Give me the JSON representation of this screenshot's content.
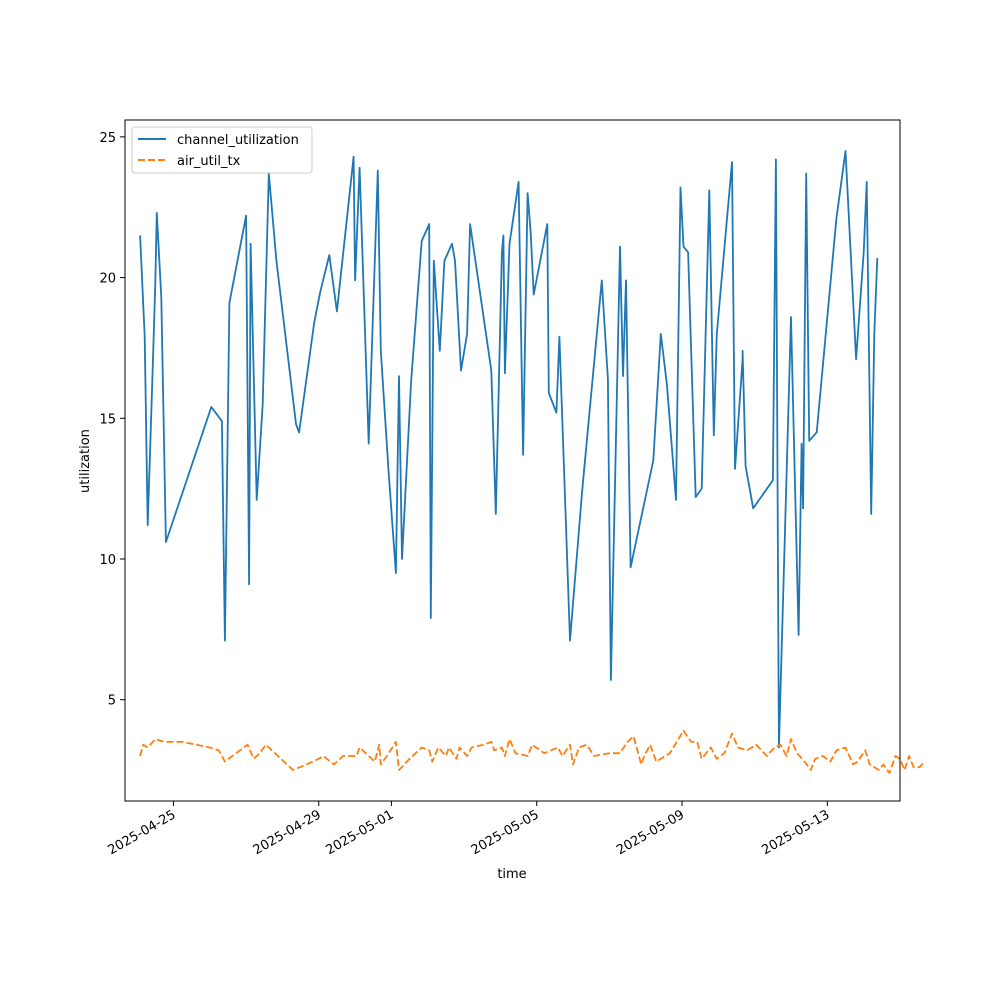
{
  "chart_data": {
    "type": "line",
    "xlabel": "time",
    "ylabel": "utilization",
    "xlim": [
      "2025-04-23T16:00",
      "2025-05-15T00:00"
    ],
    "ylim": [
      1.4,
      25.6
    ],
    "x_ticks": [
      "2025-04-25",
      "2025-04-29",
      "2025-05-01",
      "2025-05-05",
      "2025-05-09",
      "2025-05-13"
    ],
    "y_ticks": [
      5,
      10,
      15,
      20,
      25
    ],
    "grid": false,
    "legend_position": "top-left",
    "series": [
      {
        "name": "channel_utilization",
        "color": "#1f77b4",
        "dash": "solid",
        "points": [
          [
            "2025-04-24T02:00",
            21.5
          ],
          [
            "2025-04-24T05:00",
            17.9
          ],
          [
            "2025-04-24T07:00",
            11.2
          ],
          [
            "2025-04-24T10:00",
            16.2
          ],
          [
            "2025-04-24T12:00",
            19.8
          ],
          [
            "2025-04-24T13:00",
            22.3
          ],
          [
            "2025-04-24T16:00",
            19.3
          ],
          [
            "2025-04-24T19:00",
            10.6
          ],
          [
            "2025-04-26T01:00",
            15.4
          ],
          [
            "2025-04-26T08:00",
            14.9
          ],
          [
            "2025-04-26T10:00",
            7.1
          ],
          [
            "2025-04-26T13:00",
            19.1
          ],
          [
            "2025-04-27T00:00",
            22.2
          ],
          [
            "2025-04-27T02:00",
            9.1
          ],
          [
            "2025-04-27T03:00",
            21.2
          ],
          [
            "2025-04-27T07:00",
            12.1
          ],
          [
            "2025-04-27T11:00",
            15.5
          ],
          [
            "2025-04-27T15:00",
            23.7
          ],
          [
            "2025-04-27T20:00",
            20.6
          ],
          [
            "2025-04-28T09:00",
            14.8
          ],
          [
            "2025-04-28T11:00",
            14.5
          ],
          [
            "2025-04-28T21:00",
            18.4
          ],
          [
            "2025-04-29T23:00",
            24.3
          ],
          [
            "2025-04-29T01:00",
            19.5
          ],
          [
            "2025-04-29T07:00",
            20.8
          ],
          [
            "2025-04-29T12:00",
            18.8
          ],
          [
            "2025-04-30T00:00",
            19.9
          ],
          [
            "2025-04-30T03:00",
            23.9
          ],
          [
            "2025-04-30T09:00",
            14.1
          ],
          [
            "2025-04-30T15:00",
            23.8
          ],
          [
            "2025-04-30T17:00",
            17.4
          ],
          [
            "2025-04-30T22:00",
            13.2
          ],
          [
            "2025-05-01T03:00",
            9.5
          ],
          [
            "2025-05-01T05:00",
            16.5
          ],
          [
            "2025-05-01T07:00",
            10.0
          ],
          [
            "2025-05-01T13:00",
            16.3
          ],
          [
            "2025-05-01T20:00",
            21.3
          ],
          [
            "2025-05-02T01:00",
            21.9
          ],
          [
            "2025-05-02T02:00",
            7.9
          ],
          [
            "2025-05-02T04:00",
            20.6
          ],
          [
            "2025-05-02T08:00",
            17.4
          ],
          [
            "2025-05-02T11:00",
            20.6
          ],
          [
            "2025-05-02T16:00",
            21.2
          ],
          [
            "2025-05-02T18:00",
            20.6
          ],
          [
            "2025-05-02T22:00",
            16.7
          ],
          [
            "2025-05-03T02:00",
            18.0
          ],
          [
            "2025-05-03T04:00",
            21.9
          ],
          [
            "2025-05-03T18:00",
            16.7
          ],
          [
            "2025-05-03T21:00",
            11.6
          ],
          [
            "2025-05-04T01:00",
            20.9
          ],
          [
            "2025-05-04T03:00",
            16.6
          ],
          [
            "2025-05-04T06:00",
            21.2
          ],
          [
            "2025-05-04T12:00",
            23.4
          ],
          [
            "2025-05-04T22:00",
            19.4
          ],
          [
            "2025-05-04T02:00",
            21.5
          ],
          [
            "2025-05-04T15:00",
            13.7
          ],
          [
            "2025-05-04T18:00",
            23.0
          ],
          [
            "2025-05-04T20:00",
            21.6
          ],
          [
            "2025-05-05T07:00",
            21.9
          ],
          [
            "2025-05-05T08:00",
            15.9
          ],
          [
            "2025-05-05T13:00",
            15.2
          ],
          [
            "2025-05-05T15:00",
            17.9
          ],
          [
            "2025-05-05T22:00",
            7.1
          ],
          [
            "2025-05-06T06:00",
            12.4
          ],
          [
            "2025-05-06T19:00",
            19.9
          ],
          [
            "2025-05-06T23:00",
            16.4
          ],
          [
            "2025-05-07T01:00",
            5.7
          ],
          [
            "2025-05-07T07:00",
            21.1
          ],
          [
            "2025-05-07T09:00",
            16.5
          ],
          [
            "2025-05-07T11:00",
            19.9
          ],
          [
            "2025-05-07T14:00",
            9.7
          ],
          [
            "2025-05-08T05:00",
            13.5
          ],
          [
            "2025-05-08T10:00",
            18.0
          ],
          [
            "2025-05-08T14:00",
            16.2
          ],
          [
            "2025-05-08T20:00",
            12.1
          ],
          [
            "2025-05-08T23:00",
            23.2
          ],
          [
            "2025-05-09T01:00",
            21.1
          ],
          [
            "2025-05-09T04:00",
            20.9
          ],
          [
            "2025-05-09T09:00",
            12.2
          ],
          [
            "2025-05-09T13:00",
            12.5
          ],
          [
            "2025-05-09T18:00",
            23.1
          ],
          [
            "2025-05-09T21:00",
            14.4
          ],
          [
            "2025-05-09T23:00",
            18.0
          ],
          [
            "2025-05-10T11:00",
            13.2
          ],
          [
            "2025-05-10T16:00",
            17.1
          ],
          [
            "2025-05-10T18:00",
            13.3
          ],
          [
            "2025-05-10T23:00",
            11.8
          ],
          [
            "2025-05-10T09:00",
            24.1
          ],
          [
            "2025-05-10T16:00",
            17.4
          ],
          [
            "2025-05-11T12:00",
            12.8
          ],
          [
            "2025-05-11T14:00",
            24.2
          ],
          [
            "2025-05-11T16:00",
            3.3
          ],
          [
            "2025-05-12T00:00",
            18.6
          ],
          [
            "2025-05-12T05:00",
            7.3
          ],
          [
            "2025-05-12T07:00",
            14.1
          ],
          [
            "2025-05-12T08:00",
            11.8
          ],
          [
            "2025-05-12T10:00",
            23.7
          ],
          [
            "2025-05-12T12:00",
            14.2
          ],
          [
            "2025-05-12T17:00",
            14.5
          ],
          [
            "2025-05-13T06:00",
            22.1
          ],
          [
            "2025-05-13T12:00",
            24.5
          ],
          [
            "2025-05-13T19:00",
            17.1
          ],
          [
            "2025-05-14T00:00",
            20.9
          ],
          [
            "2025-05-14T02:00",
            23.4
          ],
          [
            "2025-05-14T05:00",
            11.6
          ],
          [
            "2025-05-14T07:00",
            18.0
          ],
          [
            "2025-05-14T09:00",
            20.7
          ]
        ]
      },
      {
        "name": "air_util_tx",
        "color": "#ff7f0e",
        "dash": "dashed",
        "points": [
          [
            "2025-04-24T02:00",
            3.0
          ],
          [
            "2025-04-24T04:00",
            3.4
          ],
          [
            "2025-04-24T07:00",
            3.3
          ],
          [
            "2025-04-24T12:00",
            3.6
          ],
          [
            "2025-04-24T18:00",
            3.5
          ],
          [
            "2025-04-25T06:00",
            3.5
          ],
          [
            "2025-04-26T00:00",
            3.3
          ],
          [
            "2025-04-26T06:00",
            3.2
          ],
          [
            "2025-04-26T10:00",
            2.8
          ],
          [
            "2025-04-26T20:00",
            3.2
          ],
          [
            "2025-04-27T01:00",
            3.4
          ],
          [
            "2025-04-27T05:00",
            2.9
          ],
          [
            "2025-04-27T09:00",
            3.1
          ],
          [
            "2025-04-27T13:00",
            3.4
          ],
          [
            "2025-04-28T07:00",
            2.5
          ],
          [
            "2025-04-28T16:00",
            2.7
          ],
          [
            "2025-04-29T00:00",
            2.9
          ],
          [
            "2025-04-29T03:00",
            3.0
          ],
          [
            "2025-04-29T10:00",
            2.7
          ],
          [
            "2025-04-29T16:00",
            3.0
          ],
          [
            "2025-04-30T01:00",
            3.0
          ],
          [
            "2025-04-30T03:00",
            3.3
          ],
          [
            "2025-04-30T09:00",
            3.0
          ],
          [
            "2025-04-30T13:00",
            2.8
          ],
          [
            "2025-04-30T16:00",
            3.4
          ],
          [
            "2025-04-30T17:00",
            2.7
          ],
          [
            "2025-04-30T21:00",
            3.0
          ],
          [
            "2025-05-01T03:00",
            3.5
          ],
          [
            "2025-05-01T05:00",
            2.5
          ],
          [
            "2025-05-01T12:00",
            2.9
          ],
          [
            "2025-05-01T20:00",
            3.3
          ],
          [
            "2025-05-02T01:00",
            3.2
          ],
          [
            "2025-05-02T03:00",
            2.8
          ],
          [
            "2025-05-02T07:00",
            3.3
          ],
          [
            "2025-05-02T12:00",
            3.0
          ],
          [
            "2025-05-02T14:00",
            3.3
          ],
          [
            "2025-05-02T19:00",
            2.9
          ],
          [
            "2025-05-02T21:00",
            3.3
          ],
          [
            "2025-05-03T02:00",
            3.0
          ],
          [
            "2025-05-03T05:00",
            3.3
          ],
          [
            "2025-05-03T13:00",
            3.4
          ],
          [
            "2025-05-03T18:00",
            3.5
          ],
          [
            "2025-05-03T20:00",
            3.2
          ],
          [
            "2025-05-04T01:00",
            3.3
          ],
          [
            "2025-05-04T03:00",
            3.0
          ],
          [
            "2025-05-04T06:00",
            3.6
          ],
          [
            "2025-05-04T10:00",
            3.1
          ],
          [
            "2025-05-04T18:00",
            3.0
          ],
          [
            "2025-05-04T21:00",
            3.4
          ],
          [
            "2025-05-05T05:00",
            3.1
          ],
          [
            "2025-05-05T14:00",
            3.3
          ],
          [
            "2025-05-05T17:00",
            3.0
          ],
          [
            "2025-05-05T22:00",
            3.4
          ],
          [
            "2025-05-06T00:00",
            2.7
          ],
          [
            "2025-05-06T04:00",
            3.3
          ],
          [
            "2025-05-06T09:00",
            3.4
          ],
          [
            "2025-05-06T14:00",
            3.0
          ],
          [
            "2025-05-07T00:00",
            3.1
          ],
          [
            "2025-05-07T07:00",
            3.1
          ],
          [
            "2025-05-07T12:00",
            3.5
          ],
          [
            "2025-05-07T16:00",
            3.7
          ],
          [
            "2025-05-07T21:00",
            2.7
          ],
          [
            "2025-05-07T23:00",
            3.0
          ],
          [
            "2025-05-08T03:00",
            3.4
          ],
          [
            "2025-05-08T07:00",
            2.8
          ],
          [
            "2025-05-08T16:00",
            3.1
          ],
          [
            "2025-05-09T01:00",
            3.9
          ],
          [
            "2025-05-09T06:00",
            3.5
          ],
          [
            "2025-05-09T10:00",
            3.5
          ],
          [
            "2025-05-09T13:00",
            2.9
          ],
          [
            "2025-05-09T19:00",
            3.3
          ],
          [
            "2025-05-09T23:00",
            2.9
          ],
          [
            "2025-05-10T04:00",
            3.1
          ],
          [
            "2025-05-10T09:00",
            3.8
          ],
          [
            "2025-05-10T13:00",
            3.3
          ],
          [
            "2025-05-10T19:00",
            3.2
          ],
          [
            "2025-05-11T01:00",
            3.4
          ],
          [
            "2025-05-11T08:00",
            3.0
          ],
          [
            "2025-05-11T13:00",
            3.3
          ],
          [
            "2025-05-11T17:00",
            3.4
          ],
          [
            "2025-05-11T21:00",
            3.0
          ],
          [
            "2025-05-12T00:00",
            3.6
          ],
          [
            "2025-05-12T04:00",
            3.1
          ],
          [
            "2025-05-12T09:00",
            2.8
          ],
          [
            "2025-05-12T13:00",
            2.5
          ],
          [
            "2025-05-12T16:00",
            2.9
          ],
          [
            "2025-05-12T21:00",
            3.0
          ],
          [
            "2025-05-13T02:00",
            2.8
          ],
          [
            "2025-05-13T06:00",
            3.2
          ],
          [
            "2025-05-13T12:00",
            3.3
          ],
          [
            "2025-05-13T17:00",
            2.7
          ],
          [
            "2025-05-13T20:00",
            2.8
          ],
          [
            "2025-05-14T01:00",
            3.2
          ],
          [
            "2025-05-14T04:00",
            2.7
          ],
          [
            "2025-05-14T07:00",
            2.6
          ],
          [
            "2025-05-14T10:00",
            2.5
          ],
          [
            "2025-05-14T13:00",
            2.7
          ],
          [
            "2025-05-14T17:00",
            2.4
          ],
          [
            "2025-05-14T21:00",
            3.0
          ],
          [
            "2025-05-15T00:00",
            2.9
          ],
          [
            "2025-05-15T03:00",
            2.5
          ],
          [
            "2025-05-15T06:00",
            3.0
          ],
          [
            "2025-05-15T09:00",
            2.6
          ],
          [
            "2025-05-15T13:00",
            2.6
          ],
          [
            "2025-05-15T16:00",
            2.8
          ]
        ]
      }
    ]
  }
}
